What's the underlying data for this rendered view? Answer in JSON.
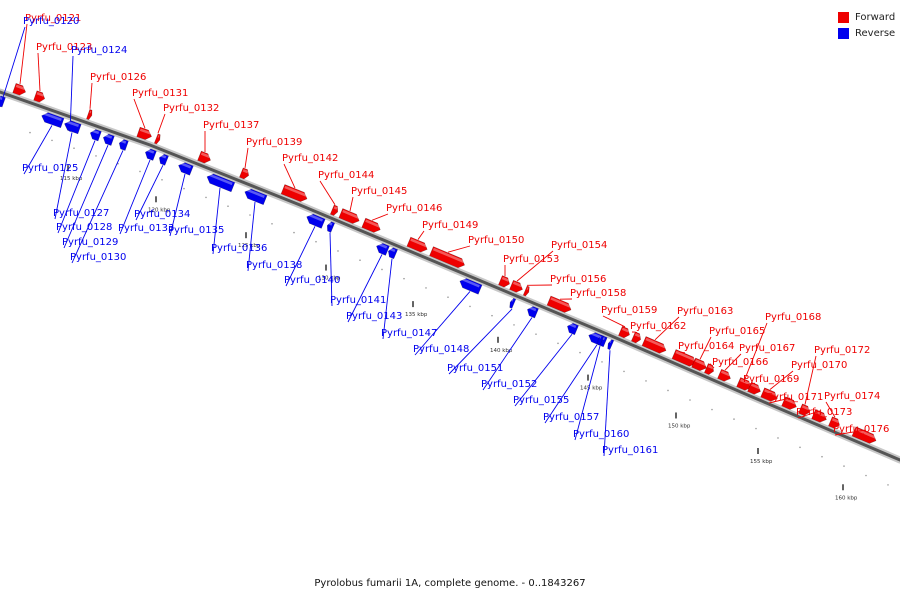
{
  "colors": {
    "forward": "#ee0000",
    "reverse": "#0000ee",
    "backbone": "#555555"
  },
  "legend": [
    {
      "label": "Forward",
      "color": "#ee0000"
    },
    {
      "label": "Reverse",
      "color": "#0000ee"
    }
  ],
  "caption": "Pyrolobus fumarii 1A, complete genome. - 0..1843267",
  "scale_ticks": [
    "115 kbp",
    "120 kbp",
    "125 kbp",
    "130 kbp",
    "135 kbp",
    "140 kbp",
    "145 kbp",
    "150 kbp",
    "155 kbp",
    "160 kbp"
  ],
  "forward_genes": [
    "Pyrfu_0121",
    "Pyrfu_0123",
    "Pyrfu_0126",
    "Pyrfu_0131",
    "Pyrfu_0132",
    "Pyrfu_0137",
    "Pyrfu_0139",
    "Pyrfu_0142",
    "Pyrfu_0144",
    "Pyrfu_0145",
    "Pyrfu_0146",
    "Pyrfu_0149",
    "Pyrfu_0150",
    "Pyrfu_0153",
    "Pyrfu_0154",
    "Pyrfu_0156",
    "Pyrfu_0158",
    "Pyrfu_0159",
    "Pyrfu_0162",
    "Pyrfu_0163",
    "Pyrfu_0164",
    "Pyrfu_0165",
    "Pyrfu_0166",
    "Pyrfu_0167",
    "Pyrfu_0168",
    "Pyrfu_0169",
    "Pyrfu_0170",
    "Pyrfu_0171",
    "Pyrfu_0172",
    "Pyrfu_0173",
    "Pyrfu_0174",
    "Pyrfu_0176"
  ],
  "reverse_genes": [
    "Pyrfu_0120",
    "Pyrfu_0124",
    "Pyrfu_0125",
    "Pyrfu_0127",
    "Pyrfu_0128",
    "Pyrfu_0129",
    "Pyrfu_0130",
    "Pyrfu_0133",
    "Pyrfu_0134",
    "Pyrfu_0135",
    "Pyrfu_0136",
    "Pyrfu_0138",
    "Pyrfu_0140",
    "Pyrfu_0141",
    "Pyrfu_0143",
    "Pyrfu_0147",
    "Pyrfu_0148",
    "Pyrfu_0151",
    "Pyrfu_0152",
    "Pyrfu_0155",
    "Pyrfu_0157",
    "Pyrfu_0160",
    "Pyrfu_0161"
  ]
}
